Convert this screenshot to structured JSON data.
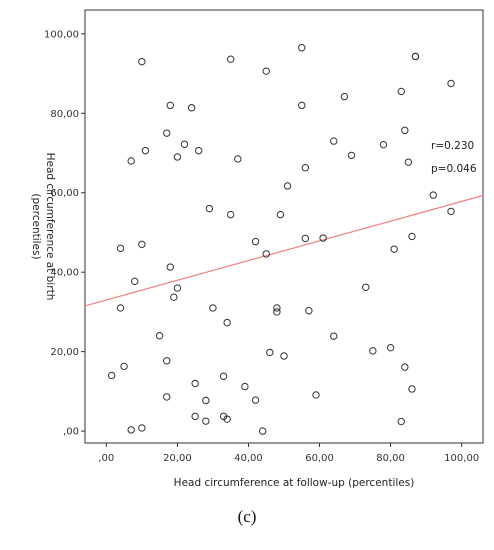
{
  "caption": "(c)",
  "chart_data": {
    "type": "scatter",
    "title": "",
    "xlabel": "Head circumference at follow-up (percentiles)",
    "ylabel_lines": [
      "Head circumference at birth",
      "(percentiles)"
    ],
    "xlim": [
      -6,
      106
    ],
    "ylim": [
      -3,
      106
    ],
    "xticks": [
      0,
      20,
      40,
      60,
      80,
      100
    ],
    "yticks": [
      0,
      20,
      40,
      60,
      80,
      100
    ],
    "xtick_labels": [
      ",00",
      "20,00",
      "40,00",
      "60,00",
      "80,00",
      "100,00"
    ],
    "ytick_labels": [
      ",00",
      "20,00",
      "40,00",
      "60,00",
      "80,00",
      "100,00"
    ],
    "grid": false,
    "annotations": [
      "r=0.230",
      "p=0.046"
    ],
    "fit_line": {
      "x": [
        -6,
        106
      ],
      "y": [
        31.5,
        59.3
      ],
      "color": "#f08080"
    },
    "marker_color": "#333333",
    "points": [
      {
        "x": 1.5,
        "y": 14
      },
      {
        "x": 4,
        "y": 46
      },
      {
        "x": 4,
        "y": 31
      },
      {
        "x": 5,
        "y": 16.3
      },
      {
        "x": 7,
        "y": 68
      },
      {
        "x": 7,
        "y": 0.3
      },
      {
        "x": 8,
        "y": 37.7
      },
      {
        "x": 10,
        "y": 93
      },
      {
        "x": 10,
        "y": 47
      },
      {
        "x": 10,
        "y": 0.8
      },
      {
        "x": 11,
        "y": 70.6
      },
      {
        "x": 15,
        "y": 24
      },
      {
        "x": 17,
        "y": 75
      },
      {
        "x": 17,
        "y": 17.7
      },
      {
        "x": 17,
        "y": 8.6
      },
      {
        "x": 18,
        "y": 82
      },
      {
        "x": 18,
        "y": 41.3
      },
      {
        "x": 19,
        "y": 33.7
      },
      {
        "x": 20,
        "y": 69
      },
      {
        "x": 20,
        "y": 36
      },
      {
        "x": 22,
        "y": 72.2
      },
      {
        "x": 24,
        "y": 81.4
      },
      {
        "x": 25,
        "y": 12
      },
      {
        "x": 25,
        "y": 3.7
      },
      {
        "x": 26,
        "y": 70.6
      },
      {
        "x": 28,
        "y": 7.7
      },
      {
        "x": 28,
        "y": 2.5
      },
      {
        "x": 29,
        "y": 56
      },
      {
        "x": 30,
        "y": 31
      },
      {
        "x": 33,
        "y": 13.8
      },
      {
        "x": 33,
        "y": 3.7
      },
      {
        "x": 34,
        "y": 27.3
      },
      {
        "x": 34,
        "y": 3
      },
      {
        "x": 35,
        "y": 93.6
      },
      {
        "x": 35,
        "y": 54.5
      },
      {
        "x": 37,
        "y": 68.5
      },
      {
        "x": 39,
        "y": 11.2
      },
      {
        "x": 42,
        "y": 47.7
      },
      {
        "x": 42,
        "y": 7.8
      },
      {
        "x": 44,
        "y": 0
      },
      {
        "x": 45,
        "y": 90.6
      },
      {
        "x": 45,
        "y": 44.6
      },
      {
        "x": 46,
        "y": 19.8
      },
      {
        "x": 48,
        "y": 31
      },
      {
        "x": 48,
        "y": 30
      },
      {
        "x": 49,
        "y": 54.5
      },
      {
        "x": 50,
        "y": 18.9
      },
      {
        "x": 51,
        "y": 61.7
      },
      {
        "x": 55,
        "y": 96.5
      },
      {
        "x": 55,
        "y": 82
      },
      {
        "x": 56,
        "y": 66.3
      },
      {
        "x": 56,
        "y": 48.5
      },
      {
        "x": 57,
        "y": 30.3
      },
      {
        "x": 59,
        "y": 9.1
      },
      {
        "x": 61,
        "y": 48.6
      },
      {
        "x": 64,
        "y": 73
      },
      {
        "x": 64,
        "y": 23.9
      },
      {
        "x": 67,
        "y": 84.2
      },
      {
        "x": 69,
        "y": 69.4
      },
      {
        "x": 73,
        "y": 36.2
      },
      {
        "x": 75,
        "y": 20.2
      },
      {
        "x": 78,
        "y": 72.1
      },
      {
        "x": 80,
        "y": 21
      },
      {
        "x": 81,
        "y": 45.8
      },
      {
        "x": 83,
        "y": 85.5
      },
      {
        "x": 83,
        "y": 2.4
      },
      {
        "x": 84,
        "y": 75.7
      },
      {
        "x": 84,
        "y": 16.1
      },
      {
        "x": 85,
        "y": 67.7
      },
      {
        "x": 86,
        "y": 49
      },
      {
        "x": 86,
        "y": 10.6
      },
      {
        "x": 87,
        "y": 94.3
      },
      {
        "x": 87,
        "y": 94.3
      },
      {
        "x": 92,
        "y": 59.4
      },
      {
        "x": 97,
        "y": 87.5
      },
      {
        "x": 97,
        "y": 55.3
      }
    ]
  }
}
